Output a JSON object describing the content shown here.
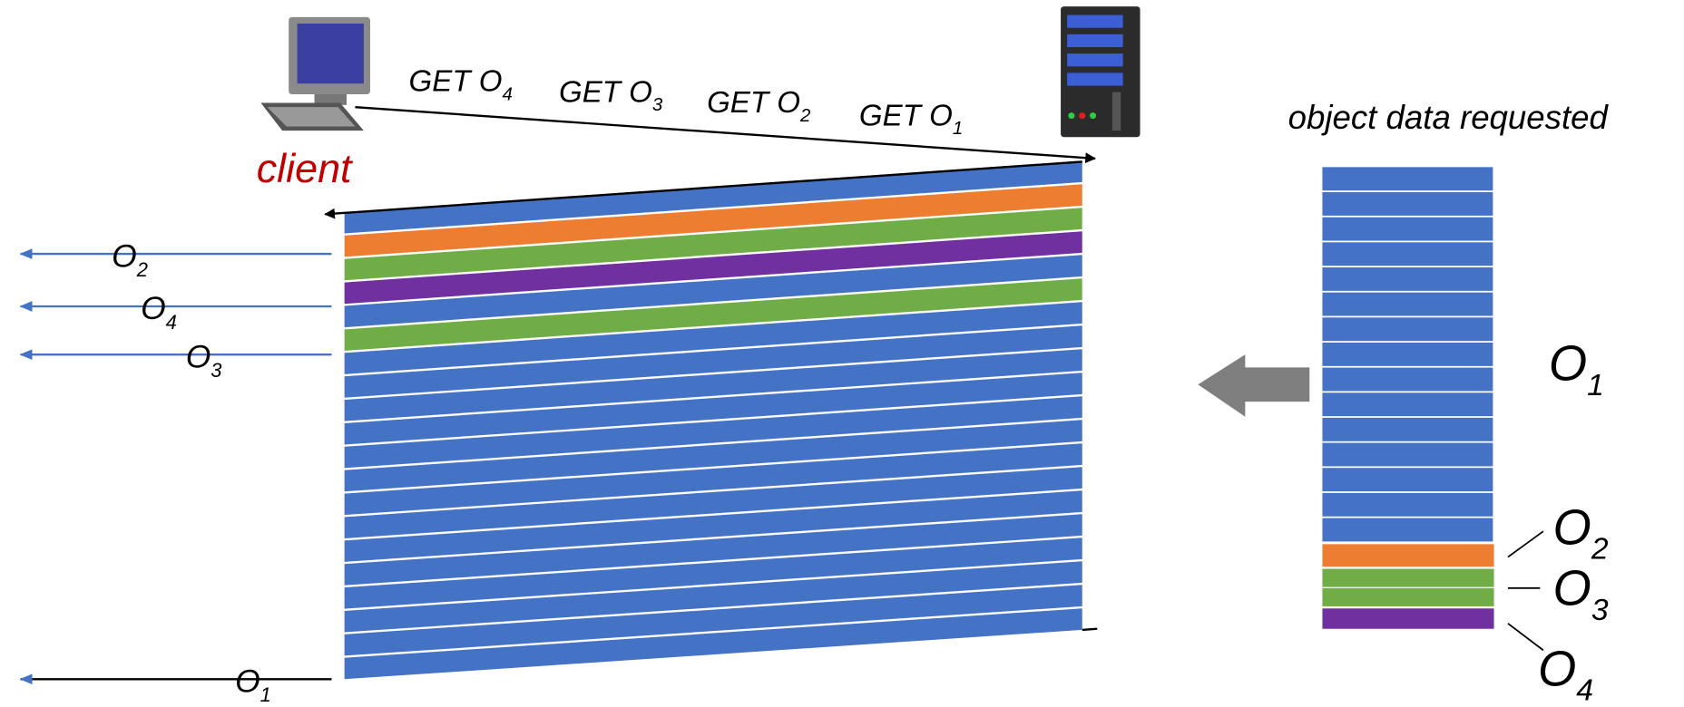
{
  "client_label": "client",
  "requests": [
    {
      "text": "GET O",
      "sub": "4"
    },
    {
      "text": "GET O",
      "sub": "3"
    },
    {
      "text": "GET O",
      "sub": "2"
    },
    {
      "text": "GET O",
      "sub": "1"
    }
  ],
  "arrivals": [
    {
      "text": "O",
      "sub": "2"
    },
    {
      "text": "O",
      "sub": "4"
    },
    {
      "text": "O",
      "sub": "3"
    },
    {
      "text": "O",
      "sub": "1"
    }
  ],
  "queue_title": "object data requested",
  "queue_labels": [
    {
      "text": "O",
      "sub": "1"
    },
    {
      "text": "O",
      "sub": "2"
    },
    {
      "text": "O",
      "sub": "3"
    },
    {
      "text": "O",
      "sub": "4"
    }
  ]
}
